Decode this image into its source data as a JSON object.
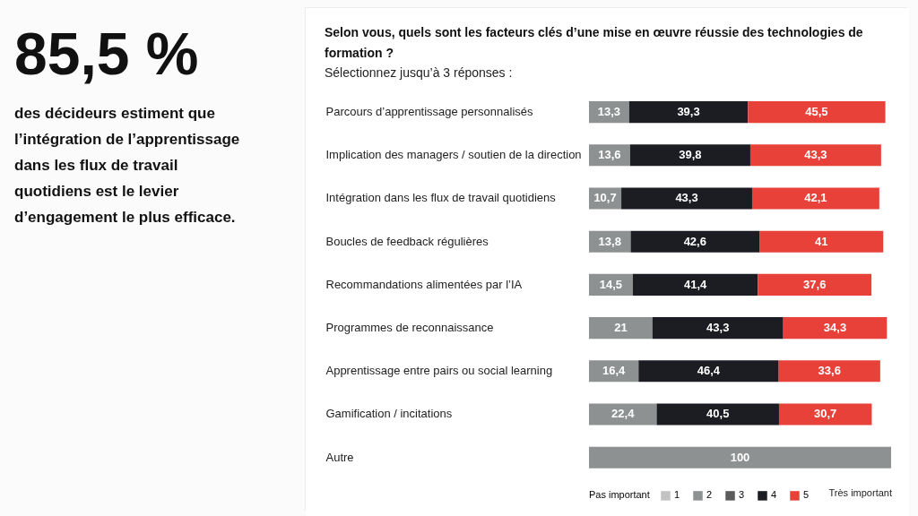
{
  "chart_data": [
    {
      "type": "other",
      "title": "85,5 %",
      "subtitle": "des décideurs estiment que l’intégration de l’apprentissage dans les flux de travail quotidiens est le levier d’engagement le plus efficace."
    },
    {
      "type": "bar",
      "orientation": "horizontal",
      "stacked": true,
      "title": "Selon vous, quels sont les facteurs clés d’une mise en œuvre réussie des technologies de formation ?",
      "subtitle": "Sélectionnez jusqu’à 3 réponses :",
      "legend_title": "Pas important",
      "annotations": [
        "Très important"
      ],
      "legend": "bottom",
      "tick_labels": "y",
      "xlim": [
        0,
        100
      ],
      "categories": [
        "Parcours d’apprentissage personnalisés",
        "Implication des managers / soutien de la direction",
        "Intégration dans les flux de travail quotidiens",
        "Boucles de feedback régulières",
        "Recommandations alimentées par l’IA",
        "Programmes de reconnaissance",
        "Apprentissage entre pairs ou social learning",
        "Gamification / incitations",
        "Autre"
      ],
      "series": [
        {
          "name": "1",
          "color": "#c2c2c2",
          "values": [
            null,
            null,
            null,
            null,
            null,
            null,
            null,
            null,
            null
          ],
          "value_labels": [
            null,
            null,
            null,
            null,
            null,
            null,
            null,
            null,
            null
          ]
        },
        {
          "name": "2",
          "color": "#8e9191",
          "values": [
            13.3,
            13.6,
            10.7,
            13.8,
            14.5,
            21,
            16.4,
            22.4,
            100
          ],
          "value_labels": [
            "13,3",
            "13,6",
            "10,7",
            "13,8",
            "14,5",
            "21",
            "16,4",
            "22,4",
            "100"
          ]
        },
        {
          "name": "3",
          "color": "#5c5c5c",
          "values": [
            null,
            null,
            null,
            null,
            null,
            null,
            null,
            null,
            null
          ],
          "value_labels": [
            null,
            null,
            null,
            null,
            null,
            null,
            null,
            null,
            null
          ]
        },
        {
          "name": "4",
          "color": "#1b1d23",
          "values": [
            39.3,
            39.8,
            43.3,
            42.6,
            41.4,
            43.3,
            46.4,
            40.5,
            null
          ],
          "value_labels": [
            "39,3",
            "39,8",
            "43,3",
            "42,6",
            "41,4",
            "43,3",
            "46,4",
            "40,5",
            null
          ]
        },
        {
          "name": "5",
          "color": "#e8413a",
          "values": [
            45.5,
            43.3,
            42.1,
            41,
            37.6,
            34.3,
            33.6,
            30.7,
            null
          ],
          "value_labels": [
            "45,5",
            "43,3",
            "42,1",
            "41",
            "37,6",
            "34,3",
            "33,6",
            "30,7",
            null
          ]
        }
      ]
    }
  ]
}
